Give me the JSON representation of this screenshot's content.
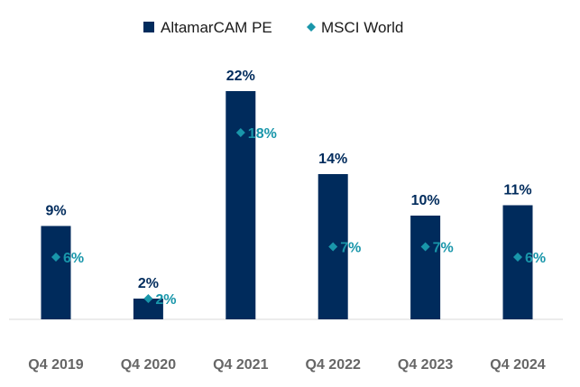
{
  "colors": {
    "bar": "#002B5C",
    "dot": "#1996AA",
    "axis": "#D9D9D9",
    "tick": "#666666"
  },
  "chart_data": {
    "type": "bar",
    "categories": [
      "Q4 2019",
      "Q4 2020",
      "Q4 2021",
      "Q4 2022",
      "Q4 2023",
      "Q4 2024"
    ],
    "series": [
      {
        "name": "AltamarCAM PE",
        "kind": "bar",
        "values": [
          9,
          2,
          22,
          14,
          10,
          11
        ],
        "labels": [
          "9%",
          "2%",
          "22%",
          "14%",
          "10%",
          "11%"
        ]
      },
      {
        "name": "MSCI World",
        "kind": "marker-diamond",
        "values": [
          6,
          2,
          18,
          7,
          7,
          6
        ],
        "labels": [
          "6%",
          "2%",
          "18%",
          "7%",
          "7%",
          "6%"
        ]
      }
    ],
    "ylim": [
      0,
      22
    ],
    "grid": false,
    "legend": "top-center",
    "title": "",
    "xlabel": "",
    "ylabel": ""
  }
}
